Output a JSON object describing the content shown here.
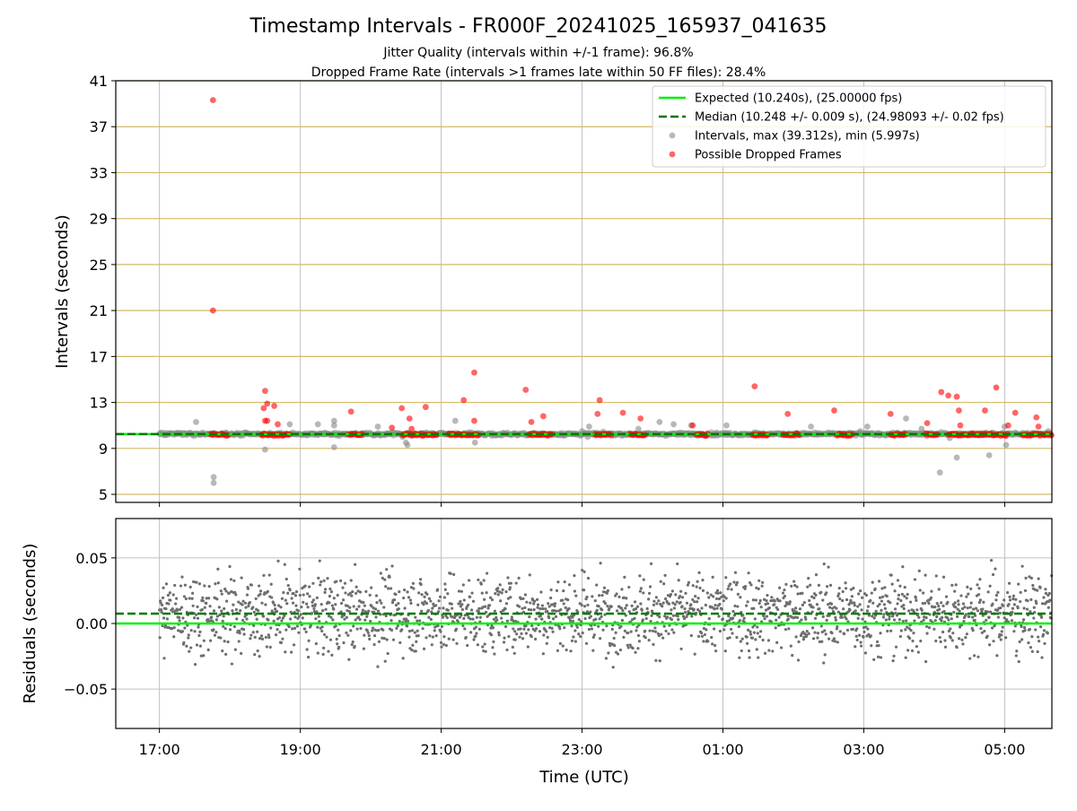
{
  "figure": {
    "title": "Timestamp Intervals - FR000F_20241025_165937_041635",
    "subtitle_1": "Jitter Quality (intervals within +/-1 frame): 96.8%",
    "subtitle_2": "Dropped Frame Rate (intervals >1 frames late within 50 FF files): 28.4%",
    "xlabel": "Time (UTC)"
  },
  "colors": {
    "expected": "#00ee00",
    "median": "#007700",
    "intervals": "#888888",
    "dropped": "#ff0000",
    "hgrid_top": "#d4b964",
    "grid": "#c0c0c0",
    "residuals": "#6e6e6e"
  },
  "chart_data": [
    {
      "type": "scatter",
      "name": "intervals-panel",
      "ylabel": "Intervals (seconds)",
      "xlim_hours": [
        16.38,
        29.67
      ],
      "ylim": [
        4.3,
        41
      ],
      "x_ticks": [
        {
          "h": 17,
          "label": "17:00"
        },
        {
          "h": 19,
          "label": "19:00"
        },
        {
          "h": 21,
          "label": "21:00"
        },
        {
          "h": 23,
          "label": "23:00"
        },
        {
          "h": 25,
          "label": "01:00"
        },
        {
          "h": 27,
          "label": "03:00"
        },
        {
          "h": 29,
          "label": "05:00"
        }
      ],
      "y_ticks": [
        {
          "v": 5,
          "label": "5"
        },
        {
          "v": 9,
          "label": "9"
        },
        {
          "v": 13,
          "label": "13"
        },
        {
          "v": 17,
          "label": "17"
        },
        {
          "v": 21,
          "label": "21"
        },
        {
          "v": 25,
          "label": "25"
        },
        {
          "v": 29,
          "label": "29"
        },
        {
          "v": 33,
          "label": "33"
        },
        {
          "v": 37,
          "label": "37"
        },
        {
          "v": 41,
          "label": "41"
        }
      ],
      "expected": 10.24,
      "median": 10.248,
      "legend": {
        "placement": "top-right",
        "entries": [
          {
            "label": "Expected (10.240s), (25.00000 fps)"
          },
          {
            "label": "Median (10.248 +/- 0.009 s), (24.98093 +/- 0.02 fps)"
          },
          {
            "label": "Intervals, max (39.312s), min (5.997s)"
          },
          {
            "label": "Possible Dropped Frames"
          }
        ]
      },
      "dropped_clusters": [
        [
          17.72,
          17.98
        ],
        [
          18.45,
          18.85
        ],
        [
          19.68,
          19.88
        ],
        [
          20.45,
          20.95
        ],
        [
          21.1,
          21.55
        ],
        [
          22.25,
          22.58
        ],
        [
          23.18,
          23.42
        ],
        [
          23.68,
          23.9
        ],
        [
          24.62,
          24.8
        ],
        [
          25.42,
          25.65
        ],
        [
          25.85,
          26.1
        ],
        [
          26.62,
          26.85
        ],
        [
          27.38,
          27.6
        ],
        [
          27.88,
          28.05
        ],
        [
          28.2,
          28.62
        ],
        [
          28.62,
          29.05
        ],
        [
          29.25,
          29.5
        ],
        [
          29.5,
          29.67
        ]
      ],
      "dropped_points": [
        {
          "h": 17.76,
          "v": 39.31
        },
        {
          "h": 17.76,
          "v": 21.0
        },
        {
          "h": 18.5,
          "v": 14.0
        },
        {
          "h": 18.48,
          "v": 12.5
        },
        {
          "h": 18.5,
          "v": 11.4
        },
        {
          "h": 18.53,
          "v": 11.4
        },
        {
          "h": 18.53,
          "v": 12.9
        },
        {
          "h": 18.63,
          "v": 12.7
        },
        {
          "h": 18.68,
          "v": 11.1
        },
        {
          "h": 19.72,
          "v": 12.2
        },
        {
          "h": 20.3,
          "v": 10.8
        },
        {
          "h": 20.44,
          "v": 12.5
        },
        {
          "h": 20.55,
          "v": 11.6
        },
        {
          "h": 20.58,
          "v": 10.7
        },
        {
          "h": 20.78,
          "v": 12.6
        },
        {
          "h": 21.32,
          "v": 13.2
        },
        {
          "h": 21.47,
          "v": 15.6
        },
        {
          "h": 21.47,
          "v": 11.4
        },
        {
          "h": 22.2,
          "v": 14.1
        },
        {
          "h": 22.28,
          "v": 11.3
        },
        {
          "h": 22.45,
          "v": 11.8
        },
        {
          "h": 23.22,
          "v": 12.0
        },
        {
          "h": 23.25,
          "v": 13.2
        },
        {
          "h": 23.58,
          "v": 12.1
        },
        {
          "h": 23.83,
          "v": 11.6
        },
        {
          "h": 24.57,
          "v": 11.0
        },
        {
          "h": 25.45,
          "v": 14.4
        },
        {
          "h": 25.92,
          "v": 12.0
        },
        {
          "h": 26.58,
          "v": 12.3
        },
        {
          "h": 27.38,
          "v": 12.0
        },
        {
          "h": 27.9,
          "v": 11.2
        },
        {
          "h": 28.1,
          "v": 13.9
        },
        {
          "h": 28.2,
          "v": 13.6
        },
        {
          "h": 28.32,
          "v": 13.5
        },
        {
          "h": 28.35,
          "v": 12.3
        },
        {
          "h": 28.37,
          "v": 11.0
        },
        {
          "h": 28.72,
          "v": 12.3
        },
        {
          "h": 28.88,
          "v": 14.3
        },
        {
          "h": 29.05,
          "v": 11.0
        },
        {
          "h": 29.15,
          "v": 12.1
        },
        {
          "h": 29.45,
          "v": 11.7
        },
        {
          "h": 29.48,
          "v": 10.9
        }
      ],
      "interval_points": [
        {
          "h": 17.09,
          "v": 10.35
        },
        {
          "h": 17.52,
          "v": 11.3
        },
        {
          "h": 17.77,
          "v": 6.5
        },
        {
          "h": 17.77,
          "v": 5.997
        },
        {
          "h": 18.15,
          "v": 10.1
        },
        {
          "h": 18.5,
          "v": 8.9
        },
        {
          "h": 18.85,
          "v": 11.1
        },
        {
          "h": 19.25,
          "v": 11.1
        },
        {
          "h": 19.48,
          "v": 11.4
        },
        {
          "h": 19.48,
          "v": 11.0
        },
        {
          "h": 19.48,
          "v": 9.1
        },
        {
          "h": 20.1,
          "v": 10.9
        },
        {
          "h": 20.5,
          "v": 9.5
        },
        {
          "h": 20.52,
          "v": 9.3
        },
        {
          "h": 20.45,
          "v": 10.0
        },
        {
          "h": 21.2,
          "v": 11.4
        },
        {
          "h": 21.48,
          "v": 9.5
        },
        {
          "h": 23.0,
          "v": 10.5
        },
        {
          "h": 23.1,
          "v": 10.9
        },
        {
          "h": 23.08,
          "v": 10.0
        },
        {
          "h": 23.8,
          "v": 10.7
        },
        {
          "h": 24.1,
          "v": 11.3
        },
        {
          "h": 24.3,
          "v": 11.1
        },
        {
          "h": 24.55,
          "v": 11.0
        },
        {
          "h": 25.05,
          "v": 11.0
        },
        {
          "h": 25.45,
          "v": 10.4
        },
        {
          "h": 26.25,
          "v": 10.9
        },
        {
          "h": 26.95,
          "v": 10.5
        },
        {
          "h": 27.05,
          "v": 10.9
        },
        {
          "h": 27.6,
          "v": 11.6
        },
        {
          "h": 27.82,
          "v": 10.7
        },
        {
          "h": 28.08,
          "v": 6.9
        },
        {
          "h": 28.22,
          "v": 9.9
        },
        {
          "h": 28.32,
          "v": 8.2
        },
        {
          "h": 28.78,
          "v": 8.4
        },
        {
          "h": 29.02,
          "v": 9.3
        },
        {
          "h": 29.0,
          "v": 10.9
        },
        {
          "h": 29.62,
          "v": 10.5
        }
      ]
    },
    {
      "type": "scatter",
      "name": "residuals-panel",
      "ylabel": "Residuals (seconds)",
      "xlabel": "Time (UTC)",
      "xlim_hours": [
        16.38,
        29.67
      ],
      "ylim": [
        -0.08,
        0.08
      ],
      "y_ticks": [
        {
          "v": 0.05,
          "label": "0.05"
        },
        {
          "v": 0.0,
          "label": "0.00"
        },
        {
          "v": -0.05,
          "label": "−0.05"
        }
      ],
      "expected": 0.0,
      "median": 0.0075,
      "data_range_hours": [
        17.0,
        29.67
      ],
      "residual_spread": 0.015
    }
  ]
}
